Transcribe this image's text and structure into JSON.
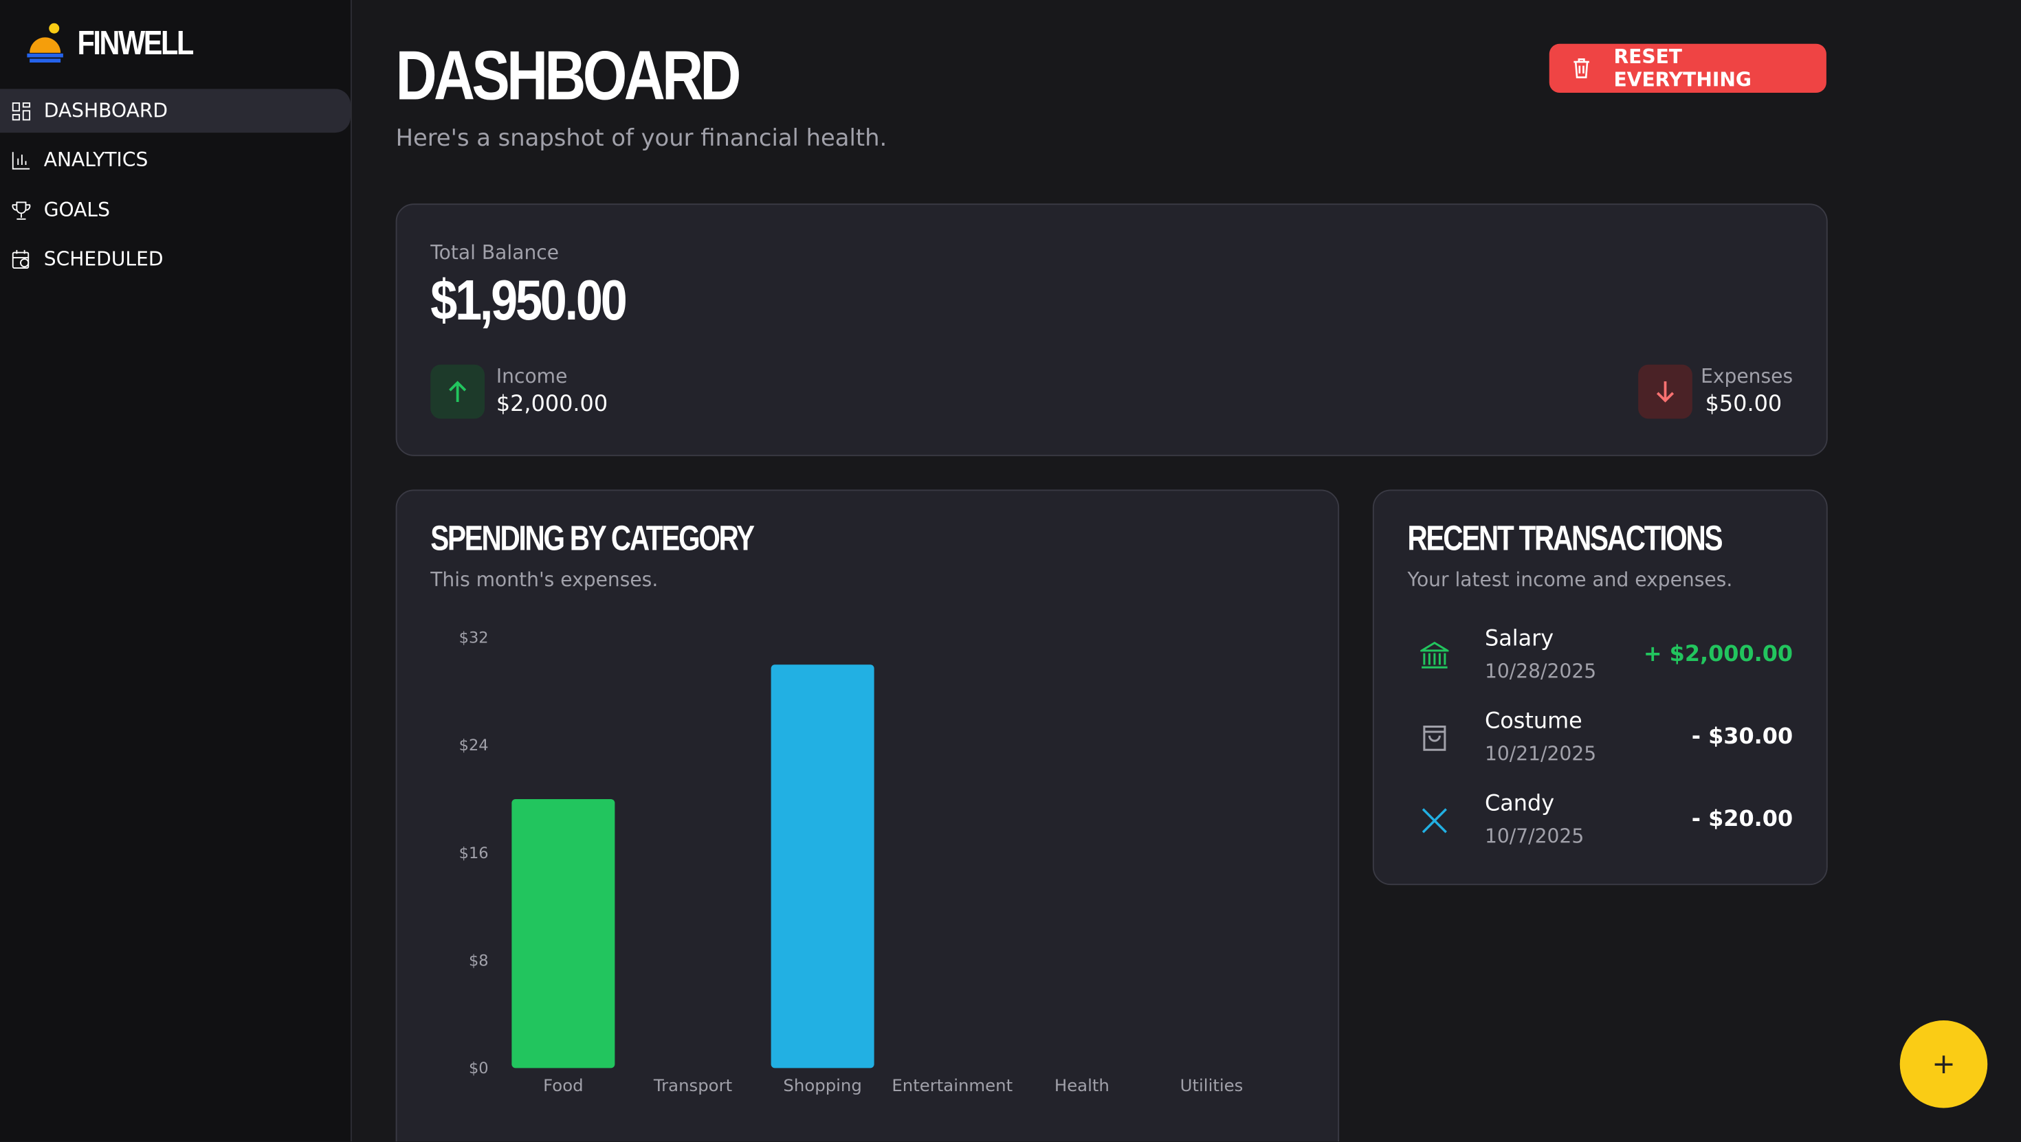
{
  "sidebar": {
    "brand": "FINWELL",
    "nav": [
      "DASHBOARD",
      "ANALYTICS",
      "GOALS",
      "SCHEDULED"
    ]
  },
  "header": {
    "title": "DASHBOARD",
    "subtitle": "Here's a snapshot of your financial health.",
    "reset_button": "RESET EVERYTHING"
  },
  "balance": {
    "label": "Total Balance",
    "value": "$1,950.00",
    "income_label": "Income",
    "income": "$2,000.00",
    "expenses_label": "Expenses",
    "expenses": "$50.00"
  },
  "chart_data": {
    "type": "bar",
    "title": "SPENDING BY CATEGORY",
    "subtitle": "This month's expenses.",
    "categories": [
      "Food",
      "Transport",
      "Shopping",
      "Entertainment",
      "Health",
      "Utilities"
    ],
    "values": [
      20,
      0,
      30,
      0,
      0,
      0
    ],
    "colors": [
      "#22c55e",
      null,
      "#22b0e3",
      null,
      null,
      null
    ],
    "ylim": [
      0,
      32
    ],
    "yticks": [
      {
        "value": 0,
        "label": "$0"
      },
      {
        "value": 8,
        "label": "$8"
      },
      {
        "value": 16,
        "label": "$16"
      },
      {
        "value": 24,
        "label": "$24"
      },
      {
        "value": 32,
        "label": "$32"
      }
    ],
    "grid": false
  },
  "transactions": {
    "title": "RECENT TRANSACTIONS",
    "subtitle": "Your latest income and expenses.",
    "items": [
      {
        "name": "Salary",
        "date": "10/28/2025",
        "amount": "+ $2,000.00"
      },
      {
        "name": "Costume",
        "date": "10/21/2025",
        "amount": "- $30.00"
      },
      {
        "name": "Candy",
        "date": "10/7/2025",
        "amount": "- $20.00"
      }
    ]
  },
  "fab": "+"
}
